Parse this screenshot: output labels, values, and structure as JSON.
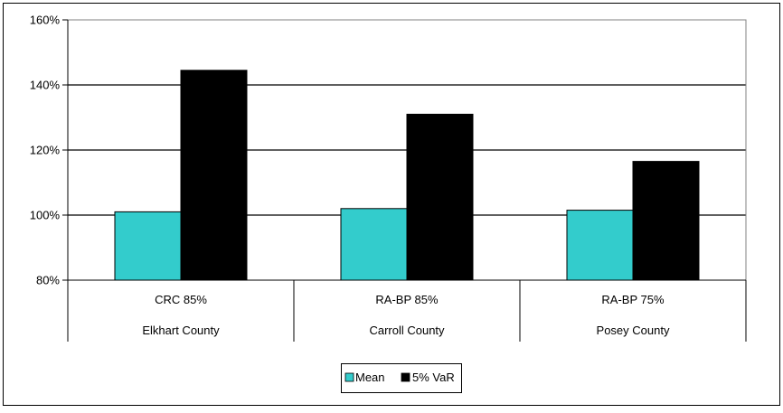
{
  "chart_data": {
    "type": "bar",
    "categories": [
      {
        "line1": "CRC 85%",
        "line2": "Elkhart County"
      },
      {
        "line1": "RA-BP 85%",
        "line2": "Carroll County"
      },
      {
        "line1": "RA-BP 75%",
        "line2": "Posey County"
      }
    ],
    "series": [
      {
        "name": "Mean",
        "color": "#33cccc",
        "values": [
          101,
          102,
          101.5
        ]
      },
      {
        "name": "5% VaR",
        "color": "#000000",
        "values": [
          144.5,
          131,
          116.5
        ]
      }
    ],
    "ylim": [
      80,
      160
    ],
    "y_ticks": [
      80,
      100,
      120,
      140,
      160
    ],
    "y_tick_labels": [
      "80%",
      "100%",
      "120%",
      "140%",
      "160%"
    ],
    "grid": true,
    "legend_position": "bottom-center"
  }
}
